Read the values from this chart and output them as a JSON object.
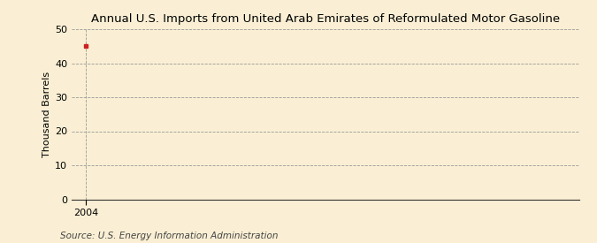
{
  "title": "Annual U.S. Imports from United Arab Emirates of Reformulated Motor Gasoline",
  "ylabel": "Thousand Barrels",
  "source_text": "Source: U.S. Energy Information Administration",
  "x_data": [
    2004
  ],
  "y_data": [
    45
  ],
  "point_color": "#cc2222",
  "point_marker": "s",
  "point_size": 3,
  "xlim": [
    2003.5,
    2021
  ],
  "ylim": [
    0,
    50
  ],
  "yticks": [
    0,
    10,
    20,
    30,
    40,
    50
  ],
  "xticks": [
    2004
  ],
  "background_color": "#faefd4",
  "plot_bg_color": "#faefd4",
  "grid_color": "#999999",
  "title_fontsize": 9.5,
  "label_fontsize": 8,
  "tick_fontsize": 8,
  "source_fontsize": 7.5
}
